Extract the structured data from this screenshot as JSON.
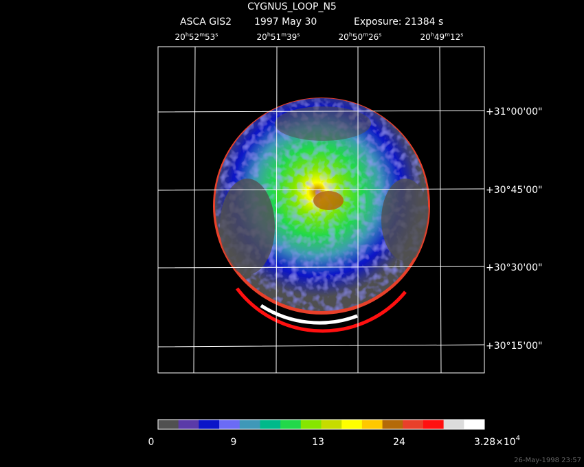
{
  "header": {
    "title": "CYGNUS_LOOP_N5",
    "instrument": "ASCA GIS2",
    "date": "1997 May 30",
    "exposure": "Exposure: 21384 s"
  },
  "ra_labels": [
    [
      "20",
      "h",
      "52",
      "m",
      "53",
      "s"
    ],
    [
      "20",
      "h",
      "51",
      "m",
      "39",
      "s"
    ],
    [
      "20",
      "h",
      "50",
      "m",
      "26",
      "s"
    ],
    [
      "20",
      "h",
      "49",
      "m",
      "12",
      "s"
    ]
  ],
  "dec_labels": [
    "+31°00'00\"",
    "+30°45'00\"",
    "+30°30'00\"",
    "+30°15'00\""
  ],
  "colorbar": {
    "colors": [
      "#505050",
      "#5a3aa8",
      "#0a14c8",
      "#6b6bf5",
      "#3f98b8",
      "#00b98a",
      "#22d84a",
      "#86e600",
      "#c6dc00",
      "#ffff00",
      "#ffc800",
      "#b46a08",
      "#e8402a",
      "#ff1010",
      "#dcdcdc",
      "#ffffff"
    ],
    "labels": [
      "0",
      "9",
      "13",
      "24"
    ],
    "max_label": {
      "mantissa": "3.28×10",
      "exponent": "4"
    }
  },
  "timestamp": "26-May-1998 23:57"
}
